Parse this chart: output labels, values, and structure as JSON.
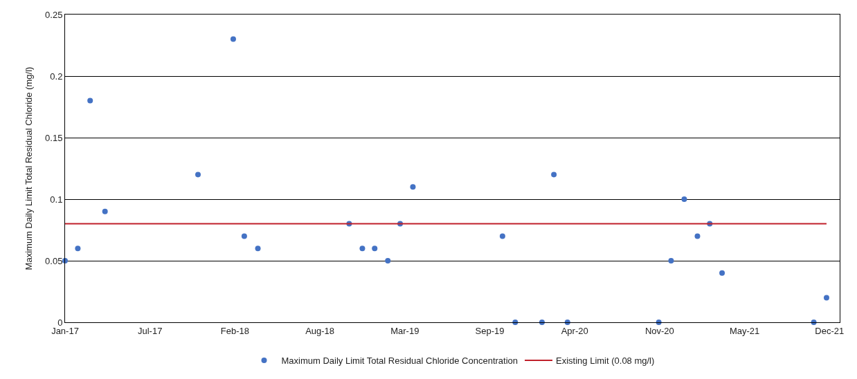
{
  "chart_data": {
    "type": "scatter",
    "ylabel": "Maximum Daily Limit Total Residual Chloride (mg/l)",
    "xlim": [
      "2017-01-01",
      "2021-12-30"
    ],
    "xticks": [
      {
        "value": "2017-01-01",
        "label": "Jan-17"
      },
      {
        "value": "2017-07-20",
        "label": "Jul-17"
      },
      {
        "value": "2018-02-05",
        "label": "Feb-18"
      },
      {
        "value": "2018-08-24",
        "label": "Aug-18"
      },
      {
        "value": "2019-03-12",
        "label": "Mar-19"
      },
      {
        "value": "2019-09-28",
        "label": "Sep-19"
      },
      {
        "value": "2020-04-15",
        "label": "Apr-20"
      },
      {
        "value": "2020-11-01",
        "label": "Nov-20"
      },
      {
        "value": "2021-05-20",
        "label": "May-21"
      },
      {
        "value": "2021-12-06",
        "label": "Dec-21"
      }
    ],
    "ylim": [
      0,
      0.25
    ],
    "yticks": [
      0,
      0.05,
      0.1,
      0.15,
      0.2,
      0.25
    ],
    "grid": "y",
    "legend": "bottom",
    "series": [
      {
        "name": "Maximum Daily Limit Total Residual Chloride Concentration",
        "marker": "circle",
        "color": "#4472c4",
        "x": [
          "2017-01-01",
          "2017-01-31",
          "2017-03-01",
          "2017-04-05",
          "2017-11-10",
          "2018-02-01",
          "2018-02-27",
          "2018-03-31",
          "2018-11-01",
          "2018-12-02",
          "2018-12-31",
          "2019-01-31",
          "2019-03-01",
          "2019-03-31",
          "2019-10-28",
          "2019-11-27",
          "2020-01-29",
          "2020-02-26",
          "2020-03-29",
          "2020-10-30",
          "2020-11-28",
          "2020-12-29",
          "2021-01-29",
          "2021-02-27",
          "2021-03-28",
          "2021-10-30",
          "2021-11-29"
        ],
        "values": [
          0.05,
          0.06,
          0.18,
          0.09,
          0.12,
          0.23,
          0.07,
          0.06,
          0.08,
          0.06,
          0.06,
          0.05,
          0.08,
          0.11,
          0.07,
          0,
          0,
          0.12,
          0,
          0,
          0.05,
          0.1,
          0.07,
          0.08,
          0.04,
          0,
          0.02
        ]
      },
      {
        "name": "Existing Limit (0.08 mg/l)",
        "type": "line",
        "color": "#c0202a",
        "x": [
          "2017-01-01",
          "2021-11-29"
        ],
        "values": [
          0.08,
          0.08
        ]
      }
    ]
  }
}
